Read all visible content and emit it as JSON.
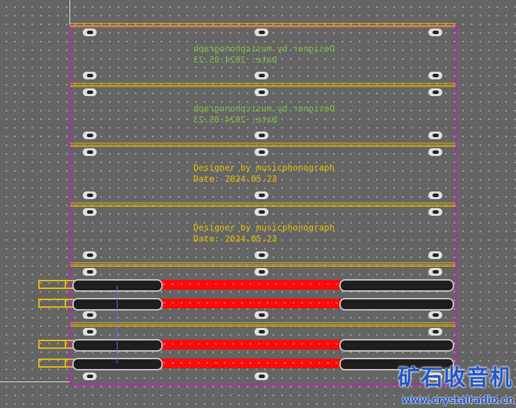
{
  "silkscreen": {
    "bottom_layer": [
      {
        "line1": "Designer by musicphonograph",
        "line2": "Date: 2024.05.23"
      },
      {
        "line1": "Designer by musicphonograph",
        "line2": "Date: 2024.05.23"
      }
    ],
    "top_layer": [
      {
        "line1": "Designer by musicphonograph",
        "line2": "Date: 2024.05.23"
      },
      {
        "line1": "Designer by musicphonograph",
        "line2": "Date: 2024.05.23"
      }
    ]
  },
  "watermark": {
    "title": "矿石收音机",
    "url": "www.crystalradio.cn"
  },
  "colors": {
    "background": "#646464",
    "board_outline": "#c020c0",
    "rail": "#e8b800",
    "trace": "#ff0a0a",
    "bottom_silk": "#7cc04a",
    "top_silk": "#e8c000",
    "watermark": "#1d57c8"
  }
}
